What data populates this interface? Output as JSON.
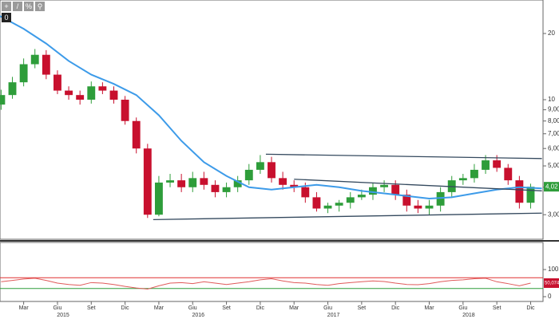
{
  "toolbar_badge": "0",
  "chart_data": [
    {
      "type": "candlestick",
      "log_scale": true,
      "x": [
        0,
        1,
        2,
        3,
        4,
        5,
        6,
        7,
        8,
        9,
        10,
        11,
        12,
        13,
        14,
        15,
        16,
        17,
        18,
        19,
        20,
        21,
        22,
        23,
        24,
        25,
        26,
        27,
        28,
        29,
        30,
        31,
        32,
        33,
        34,
        35,
        36,
        37,
        38,
        39,
        40,
        41,
        42,
        43,
        44,
        45,
        46,
        47
      ],
      "open": [
        9.5,
        10.5,
        12,
        14.5,
        16,
        13,
        11,
        10.5,
        10,
        11.5,
        11,
        10,
        8,
        6,
        3,
        4.2,
        4.3,
        4.0,
        4.4,
        4.1,
        3.8,
        4.0,
        4.3,
        4.8,
        5.2,
        4.4,
        4.1,
        4.0,
        3.6,
        3.2,
        3.3,
        3.4,
        3.6,
        3.7,
        4.0,
        4.1,
        3.7,
        3.3,
        3.2,
        3.3,
        3.8,
        4.3,
        4.4,
        4.8,
        5.3,
        4.9,
        4.3,
        3.4
      ],
      "high": [
        11.1,
        12.7,
        15.4,
        17,
        16.8,
        13.6,
        11.5,
        11,
        12.1,
        12,
        11.5,
        10.4,
        8.3,
        6.3,
        4.5,
        4.6,
        4.6,
        4.7,
        4.7,
        4.3,
        4.2,
        4.5,
        5.1,
        5.6,
        5.5,
        4.7,
        4.3,
        4.2,
        3.8,
        3.4,
        3.5,
        3.8,
        3.9,
        4.2,
        4.3,
        4.3,
        3.9,
        3.5,
        3.5,
        4.0,
        4.5,
        4.6,
        5.1,
        5.6,
        5.6,
        5.1,
        4.5,
        4.15
      ],
      "low": [
        9.0,
        10.1,
        11.5,
        13.9,
        12.4,
        10.6,
        10.0,
        9.5,
        9.6,
        10.6,
        9.6,
        7.7,
        5.7,
        2.9,
        2.95,
        4.0,
        3.8,
        3.8,
        3.9,
        3.6,
        3.6,
        3.8,
        4.1,
        4.6,
        4.2,
        3.9,
        3.8,
        3.4,
        3.1,
        3.05,
        3.1,
        3.2,
        3.5,
        3.5,
        3.8,
        3.5,
        3.1,
        3.05,
        3.0,
        3.1,
        3.6,
        4.1,
        4.2,
        4.6,
        4.7,
        4.1,
        3.2,
        3.2
      ],
      "close": [
        10.5,
        12,
        14.5,
        16,
        13,
        11,
        10.5,
        10,
        11.5,
        11,
        10,
        8,
        6,
        3,
        4.2,
        4.3,
        4.0,
        4.4,
        4.1,
        3.8,
        4.0,
        4.3,
        4.8,
        5.2,
        4.4,
        4.1,
        4.0,
        3.6,
        3.2,
        3.3,
        3.4,
        3.6,
        3.7,
        4.0,
        4.1,
        3.7,
        3.3,
        3.2,
        3.3,
        3.8,
        4.3,
        4.4,
        4.8,
        5.3,
        4.9,
        4.3,
        3.4,
        4.02
      ],
      "up_color": "#2e9d3a",
      "down_color": "#c8102e",
      "moving_average": {
        "color": "#3d9be9",
        "x": [
          -0.1,
          2,
          4,
          6,
          8,
          10,
          12,
          14,
          16,
          18,
          20,
          22,
          24,
          26,
          28,
          30,
          32,
          34,
          36,
          38,
          40,
          42,
          44,
          46,
          48
        ],
        "values": [
          24,
          21,
          18,
          15,
          13,
          11.8,
          10.5,
          8.5,
          6.5,
          5.2,
          4.5,
          4.0,
          3.9,
          4.0,
          4.1,
          4.0,
          3.85,
          3.75,
          3.65,
          3.55,
          3.6,
          3.75,
          3.9,
          4.0,
          3.95
        ]
      },
      "trendlines": [
        {
          "x": [
            13.5,
            48
          ],
          "y": [
            2.85,
            3.05
          ]
        },
        {
          "x": [
            23.5,
            48
          ],
          "y": [
            5.65,
            5.4
          ]
        },
        {
          "x": [
            26,
            48
          ],
          "y": [
            4.35,
            3.85
          ]
        }
      ],
      "trendline_color": "#34495e",
      "last_price": {
        "value": 4.02,
        "label": "4,02"
      },
      "xlim": [
        -0.1,
        48.1
      ],
      "ylim": [
        2.32,
        28.4
      ],
      "yticks": [
        {
          "value": 3,
          "label": "3,00"
        },
        {
          "value": 4,
          "label": "4,00"
        },
        {
          "value": 5,
          "label": "5,00"
        },
        {
          "value": 6,
          "label": "6,00"
        },
        {
          "value": 7,
          "label": "7,00"
        },
        {
          "value": 8,
          "label": "8,00"
        },
        {
          "value": 9,
          "label": "9,00"
        },
        10,
        20
      ],
      "xticks": [
        {
          "value": 2,
          "label": "Mar"
        },
        {
          "value": 5,
          "label": "Giu"
        },
        {
          "value": 8,
          "label": "Set"
        },
        {
          "value": 11,
          "label": "Dic"
        },
        {
          "value": 14,
          "label": "Mar"
        },
        {
          "value": 17,
          "label": "Giu"
        },
        {
          "value": 20,
          "label": "Set"
        },
        {
          "value": 23,
          "label": "Dic"
        },
        {
          "value": 26,
          "label": "Mar"
        },
        {
          "value": 29,
          "label": "Giu"
        },
        {
          "value": 32,
          "label": "Set"
        },
        {
          "value": 35,
          "label": "Dic"
        },
        {
          "value": 38,
          "label": "Mar"
        },
        {
          "value": 41,
          "label": "Giu"
        },
        {
          "value": 44,
          "label": "Set"
        },
        {
          "value": 47,
          "label": "Dic"
        }
      ],
      "year_ticks": [
        {
          "value": 5.5,
          "label": "2015"
        },
        {
          "value": 17.5,
          "label": "2016"
        },
        {
          "value": 29.5,
          "label": "2017"
        },
        {
          "value": 41.5,
          "label": "2018"
        }
      ]
    },
    {
      "type": "line",
      "color": "#e05a5a",
      "x": [
        0,
        1,
        2,
        3,
        4,
        5,
        6,
        7,
        8,
        9,
        10,
        11,
        12,
        13,
        14,
        15,
        16,
        17,
        18,
        19,
        20,
        21,
        22,
        23,
        24,
        25,
        26,
        27,
        28,
        29,
        30,
        31,
        32,
        33,
        34,
        35,
        36,
        37,
        38,
        39,
        40,
        41,
        42,
        43,
        44,
        45,
        46,
        47
      ],
      "values": [
        55,
        60,
        65,
        68,
        60,
        50,
        45,
        42,
        52,
        50,
        45,
        38,
        32,
        28,
        40,
        50,
        52,
        48,
        55,
        50,
        45,
        50,
        55,
        62,
        66,
        58,
        52,
        50,
        45,
        42,
        48,
        52,
        55,
        58,
        56,
        50,
        45,
        44,
        48,
        55,
        60,
        62,
        66,
        68,
        55,
        48,
        40,
        50.0749
      ],
      "bands": [
        30,
        70
      ],
      "band_colors": [
        "#2e9d3a",
        "#e03030"
      ],
      "last_value": {
        "value": 50.0749,
        "label": "50,0749"
      },
      "xlim": [
        -0.1,
        48.1
      ],
      "ylim": [
        0,
        100
      ],
      "yticks": [
        0,
        100
      ]
    }
  ]
}
